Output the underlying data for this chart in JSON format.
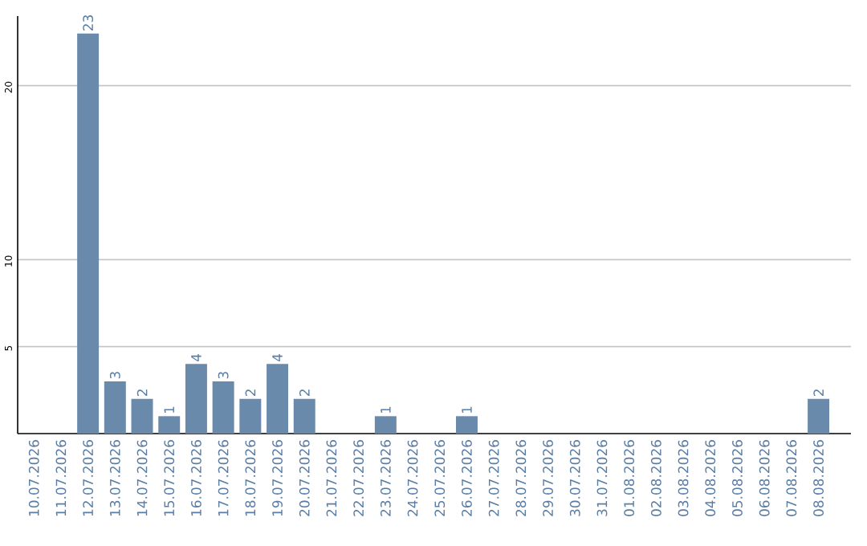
{
  "chart_data": {
    "type": "bar",
    "categories": [
      "10.07.2026",
      "11.07.2026",
      "12.07.2026",
      "13.07.2026",
      "14.07.2026",
      "15.07.2026",
      "16.07.2026",
      "17.07.2026",
      "18.07.2026",
      "19.07.2026",
      "20.07.2026",
      "21.07.2026",
      "22.07.2026",
      "23.07.2026",
      "24.07.2026",
      "25.07.2026",
      "26.07.2026",
      "27.07.2026",
      "28.07.2026",
      "29.07.2026",
      "30.07.2026",
      "31.07.2026",
      "01.08.2026",
      "02.08.2026",
      "03.08.2026",
      "04.08.2026",
      "05.08.2026",
      "06.08.2026",
      "07.08.2026",
      "08.08.2026"
    ],
    "values": [
      0,
      0,
      23,
      3,
      2,
      1,
      4,
      3,
      2,
      4,
      2,
      0,
      0,
      1,
      0,
      0,
      1,
      0,
      0,
      0,
      0,
      0,
      0,
      0,
      0,
      0,
      0,
      0,
      0,
      2
    ],
    "value_labels": [
      null,
      null,
      "23",
      "3",
      "2",
      "1",
      "4",
      "3",
      "2",
      "4",
      "2",
      null,
      null,
      "1",
      null,
      null,
      "1",
      null,
      null,
      null,
      null,
      null,
      null,
      null,
      null,
      null,
      null,
      null,
      null,
      "2"
    ],
    "color": "#6a8aab",
    "ylim": [
      0,
      24
    ],
    "yticks": [
      5,
      10,
      20
    ],
    "grid": "y"
  }
}
